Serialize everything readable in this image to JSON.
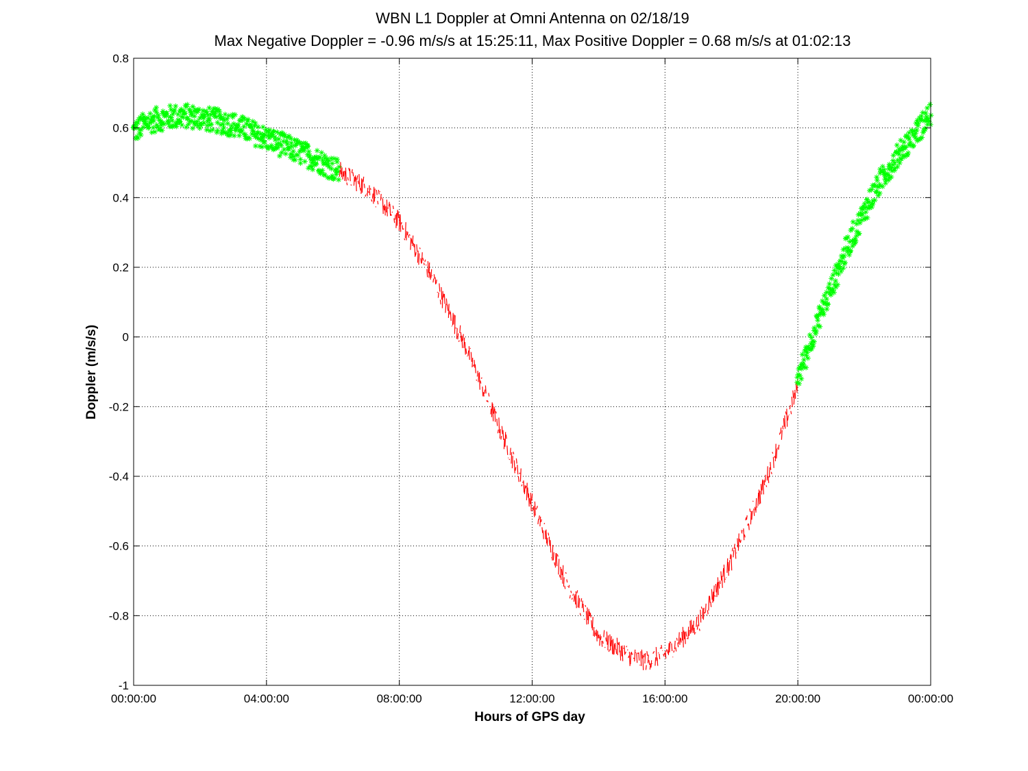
{
  "chart_data": {
    "type": "scatter",
    "title": "WBN  L1 Doppler at Omni Antenna on 02/18/19",
    "subtitle": "Max Negative Doppler = -0.96 m/s/s  at 15:25:11,   Max Positive Doppler = 0.68 m/s/s  at 01:02:13",
    "xlabel": "Hours of GPS day",
    "ylabel": "Doppler (m/s/s)",
    "xlim": [
      0,
      24
    ],
    "ylim": [
      -1,
      0.8
    ],
    "xticks": [
      0,
      4,
      8,
      12,
      16,
      20,
      24
    ],
    "xtick_labels": [
      "00:00:00",
      "04:00:00",
      "08:00:00",
      "12:00:00",
      "16:00:00",
      "20:00:00",
      "00:00:00"
    ],
    "yticks": [
      0.8,
      0.6,
      0.4,
      0.2,
      0,
      -0.2,
      -0.4,
      -0.6,
      -0.8,
      -1
    ],
    "ytick_labels": [
      "0.8",
      "0.6",
      "0.4",
      "0.2",
      "0",
      "-0.2",
      "-0.4",
      "-0.6",
      "-0.8",
      "-1"
    ],
    "grid": true,
    "series_colors": [
      "#00ff00",
      "#ff0000",
      "#00ff00"
    ],
    "series": [
      {
        "marker": "asterisk",
        "color": "#00ff00",
        "x": [
          0,
          0.5,
          1.0,
          1.5,
          2.0,
          2.5,
          3.0,
          3.5,
          4.0,
          4.5,
          5.0,
          5.5,
          6.0,
          6.2
        ],
        "y": [
          0.59,
          0.62,
          0.63,
          0.635,
          0.63,
          0.62,
          0.61,
          0.59,
          0.57,
          0.55,
          0.53,
          0.51,
          0.485,
          0.475
        ],
        "spread": 0.035
      },
      {
        "marker": "line",
        "color": "#ff0000",
        "x": [
          6.2,
          7.0,
          8.0,
          9.0,
          10.0,
          11.0,
          12.0,
          13.0,
          14.0,
          15.0,
          15.42,
          16.0,
          17.0,
          18.0,
          19.0,
          20.0
        ],
        "y": [
          0.475,
          0.43,
          0.33,
          0.17,
          -0.03,
          -0.26,
          -0.48,
          -0.7,
          -0.86,
          -0.92,
          -0.93,
          -0.91,
          -0.82,
          -0.64,
          -0.42,
          -0.14
        ],
        "spread": 0.03
      },
      {
        "marker": "asterisk",
        "color": "#00ff00",
        "x": [
          20.0,
          20.5,
          21.0,
          21.5,
          22.0,
          22.5,
          23.0,
          23.5,
          24.0
        ],
        "y": [
          -0.12,
          0.02,
          0.14,
          0.26,
          0.36,
          0.45,
          0.52,
          0.58,
          0.64
        ],
        "spread": 0.035
      }
    ]
  }
}
